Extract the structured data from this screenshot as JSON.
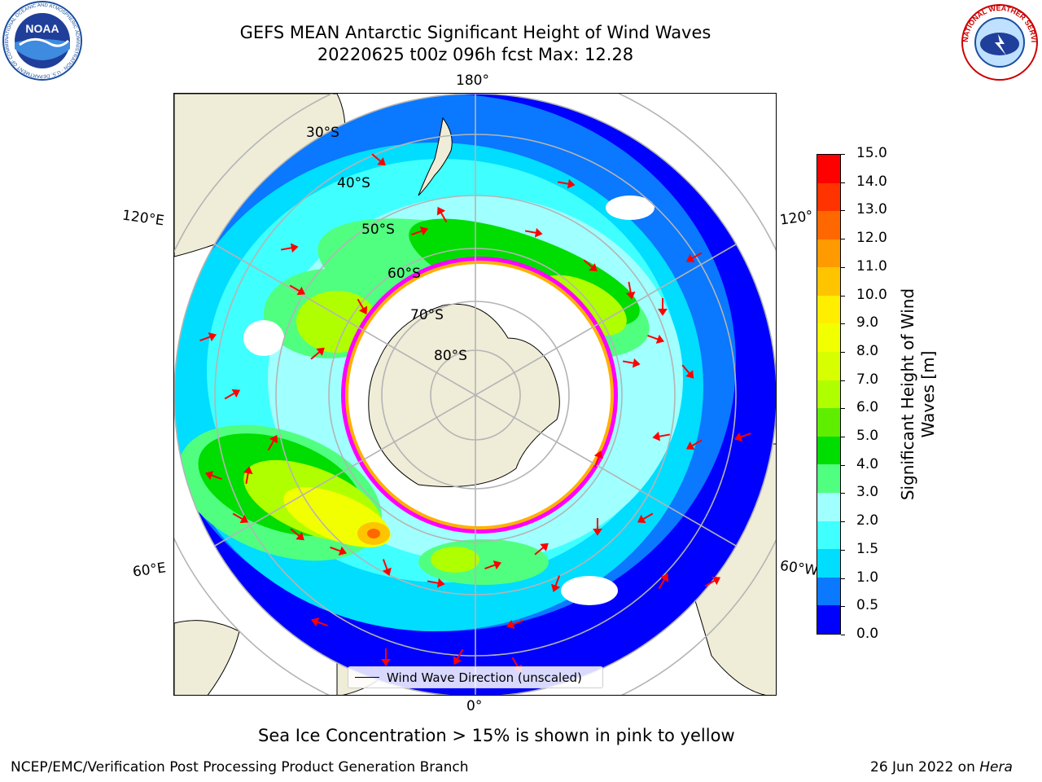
{
  "title_line1": "GEFS MEAN Antarctic Significant Height of Wind Waves",
  "title_line2": "20220625 t00z 096h fcst   Max: 12.28",
  "map": {
    "lon_labels": {
      "top": "180°",
      "bottom": "0°",
      "left_upper": "120°E",
      "left_lower": "60°E",
      "right_upper": "120°",
      "right_lower": "60°W"
    },
    "lat_labels": [
      "30°S",
      "40°S",
      "50°S",
      "60°S",
      "70°S",
      "80°S"
    ],
    "legend_label": "Wind Wave Direction (unscaled)",
    "land_color": "#efecd8",
    "arrow_color": "#ff0000",
    "ice_edge_colors": [
      "#ff00ff",
      "#ffb000"
    ]
  },
  "colorbar": {
    "label": "Significant Height of Wind Waves [m]",
    "ticks": [
      "0.0",
      "0.5",
      "1.0",
      "1.5",
      "2.0",
      "3.0",
      "4.0",
      "5.0",
      "6.0",
      "7.0",
      "8.0",
      "9.0",
      "10.0",
      "11.0",
      "12.0",
      "13.0",
      "14.0",
      "15.0"
    ],
    "colors": [
      "#0000ff",
      "#0a78ff",
      "#00ddff",
      "#40ffff",
      "#a0ffff",
      "#50ff80",
      "#00dd00",
      "#60ee00",
      "#b0ff00",
      "#d8ff00",
      "#f2ff00",
      "#ffee00",
      "#ffc400",
      "#ff9a00",
      "#ff6800",
      "#ff3300",
      "#ff0000"
    ]
  },
  "sea_ice_note": "Sea Ice Concentration > 15% is shown in pink to yellow",
  "footer_left": "NCEP/EMC/Verification Post Processing Product Generation Branch",
  "footer_right_date": "26 Jun 2022 on",
  "footer_right_machine": "Hera",
  "logos": {
    "noaa_text": "NOAA",
    "noaa_ring": "NATIONAL OCEANIC AND ATMOSPHERIC ADMINISTRATION · U.S. DEPARTMENT OF COMMERCE",
    "nws_ring": "NATIONAL WEATHER SERVICE"
  }
}
